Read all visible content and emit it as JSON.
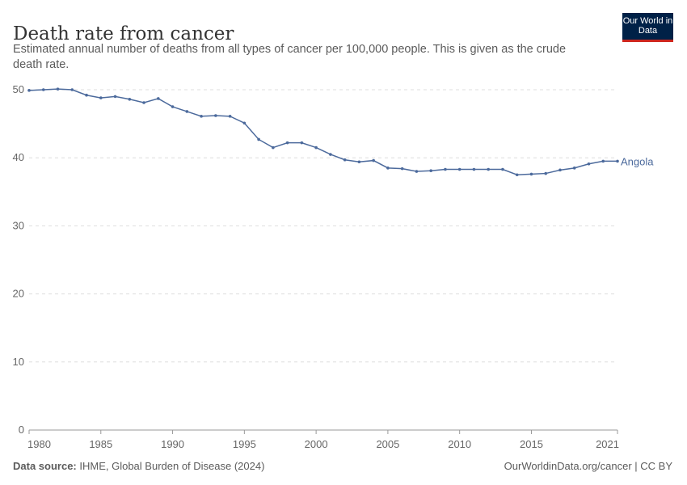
{
  "header": {
    "title": "Death rate from cancer",
    "subtitle": "Estimated annual number of deaths from all types of cancer per 100,000 people. This is given as the crude death rate.",
    "logo": "Our World in Data"
  },
  "footer": {
    "source_label": "Data source:",
    "source": "IHME, Global Burden of Disease (2024)",
    "link": "OurWorldinData.org/cancer | CC BY"
  },
  "chart_data": {
    "type": "line",
    "title": "Death rate from cancer",
    "xlabel": "",
    "ylabel": "",
    "ylim": [
      0,
      50
    ],
    "xlim": [
      1980,
      2021
    ],
    "grid": "horizontal dashed",
    "yticks": [
      0,
      10,
      20,
      30,
      40,
      50
    ],
    "xticks": [
      1980,
      1985,
      1990,
      1995,
      2000,
      2005,
      2010,
      2015,
      2021
    ],
    "x": [
      1980,
      1981,
      1982,
      1983,
      1984,
      1985,
      1986,
      1987,
      1988,
      1989,
      1990,
      1991,
      1992,
      1993,
      1994,
      1995,
      1996,
      1997,
      1998,
      1999,
      2000,
      2001,
      2002,
      2003,
      2004,
      2005,
      2006,
      2007,
      2008,
      2009,
      2010,
      2011,
      2012,
      2013,
      2014,
      2015,
      2016,
      2017,
      2018,
      2019,
      2020,
      2021
    ],
    "series": [
      {
        "name": "Angola",
        "color": "#4c6a9c",
        "values": [
          49.9,
          50.0,
          50.1,
          50.0,
          49.2,
          48.8,
          49.0,
          48.6,
          48.1,
          48.7,
          47.5,
          46.8,
          46.1,
          46.2,
          46.1,
          45.1,
          42.7,
          41.5,
          42.2,
          42.2,
          41.5,
          40.5,
          39.7,
          39.4,
          39.6,
          38.5,
          38.4,
          38.0,
          38.1,
          38.3,
          38.3,
          38.3,
          38.3,
          38.3,
          37.5,
          37.6,
          37.7,
          38.2,
          38.5,
          39.1,
          39.5,
          39.5
        ]
      }
    ]
  }
}
